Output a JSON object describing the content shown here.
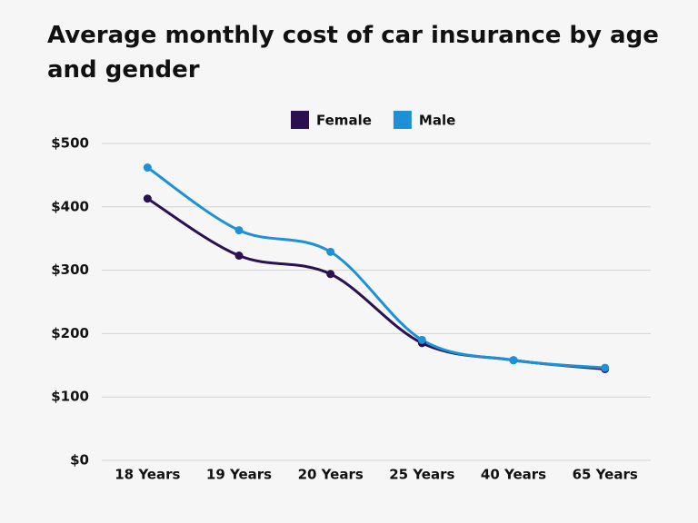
{
  "chart_data": {
    "type": "line",
    "title": "Average monthly cost of car insurance by age and gender",
    "categories": [
      "18 Years",
      "19 Years",
      "20 Years",
      "25 Years",
      "40 Years",
      "65 Years"
    ],
    "series": [
      {
        "name": "Female",
        "color": "#2b1052",
        "values": [
          413,
          323,
          294,
          185,
          158,
          144
        ]
      },
      {
        "name": "Male",
        "color": "#1e90d6",
        "values": [
          462,
          363,
          329,
          190,
          158,
          146
        ]
      }
    ],
    "ylim": [
      0,
      500
    ],
    "yticks": [
      {
        "value": 0,
        "label": "$0"
      },
      {
        "value": 100,
        "label": "$100"
      },
      {
        "value": 200,
        "label": "$200"
      },
      {
        "value": 300,
        "label": "$300"
      },
      {
        "value": 400,
        "label": "$400"
      },
      {
        "value": 500,
        "label": "$500"
      }
    ],
    "grid": true,
    "legend": "top"
  }
}
